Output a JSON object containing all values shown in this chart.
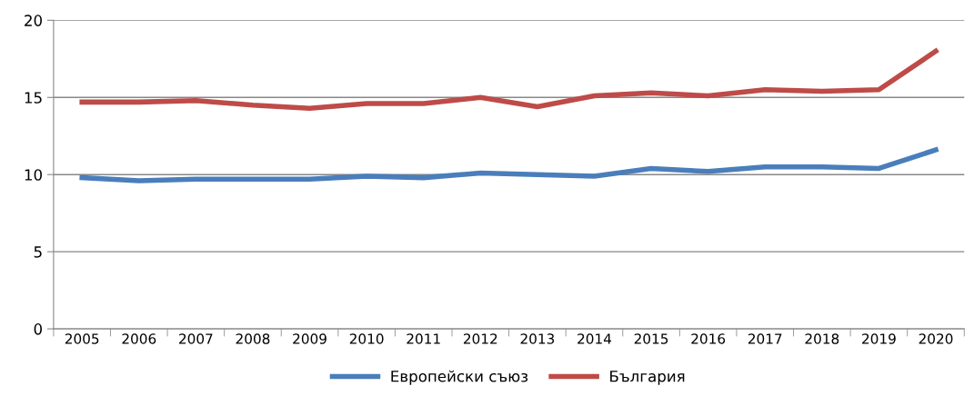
{
  "chart_data": {
    "type": "line",
    "categories": [
      "2005",
      "2006",
      "2007",
      "2008",
      "2009",
      "2010",
      "2011",
      "2012",
      "2013",
      "2014",
      "2015",
      "2016",
      "2017",
      "2018",
      "2019",
      "2020"
    ],
    "series": [
      {
        "name": "Европейски съюз",
        "color": "#4a7ebb",
        "values": [
          9.8,
          9.6,
          9.7,
          9.7,
          9.7,
          9.9,
          9.8,
          10.1,
          10.0,
          9.9,
          10.4,
          10.2,
          10.5,
          10.5,
          10.4,
          11.6
        ]
      },
      {
        "name": "България",
        "color": "#be4b48",
        "values": [
          14.7,
          14.7,
          14.8,
          14.5,
          14.3,
          14.6,
          14.6,
          15.0,
          14.4,
          15.1,
          15.3,
          15.1,
          15.5,
          15.4,
          15.5,
          18.0
        ]
      }
    ],
    "ylim": [
      0,
      20
    ],
    "yticks": [
      0,
      5,
      10,
      15,
      20
    ],
    "grid": "y",
    "legend": "bottom",
    "marker": "none",
    "line_style": "solid"
  }
}
